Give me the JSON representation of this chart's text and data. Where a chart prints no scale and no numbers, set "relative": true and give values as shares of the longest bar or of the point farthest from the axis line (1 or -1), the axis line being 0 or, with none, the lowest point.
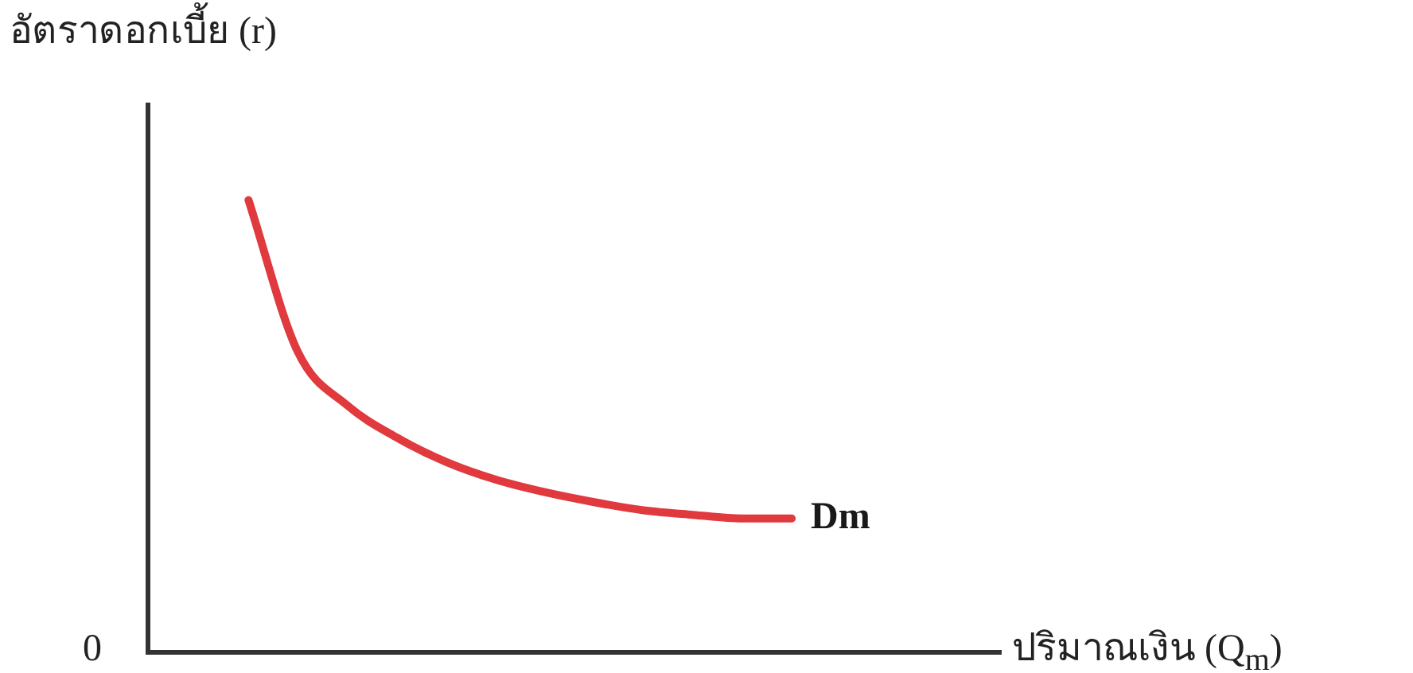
{
  "chart_data": {
    "type": "line",
    "relative": true,
    "ylabel": "อัตราดอกเบี้ย (r)",
    "annotations": [
      "0",
      "ปริมาณเงิน (Q$_{m}$)"
    ],
    "categories": [
      null,
      null,
      null,
      null,
      null,
      null,
      null,
      null,
      null,
      null,
      null,
      null
    ],
    "series": [
      {
        "name": "Dm",
        "color": "#e0393e",
        "values": [
          1,
          0.664,
          0.546,
          0.475,
          0.421,
          0.382,
          0.354,
          0.332,
          0.314,
          0.304,
          0.296,
          0.296
        ]
      }
    ],
    "legend": false,
    "grid": false,
    "marker": "none",
    "line_style": "solid"
  }
}
